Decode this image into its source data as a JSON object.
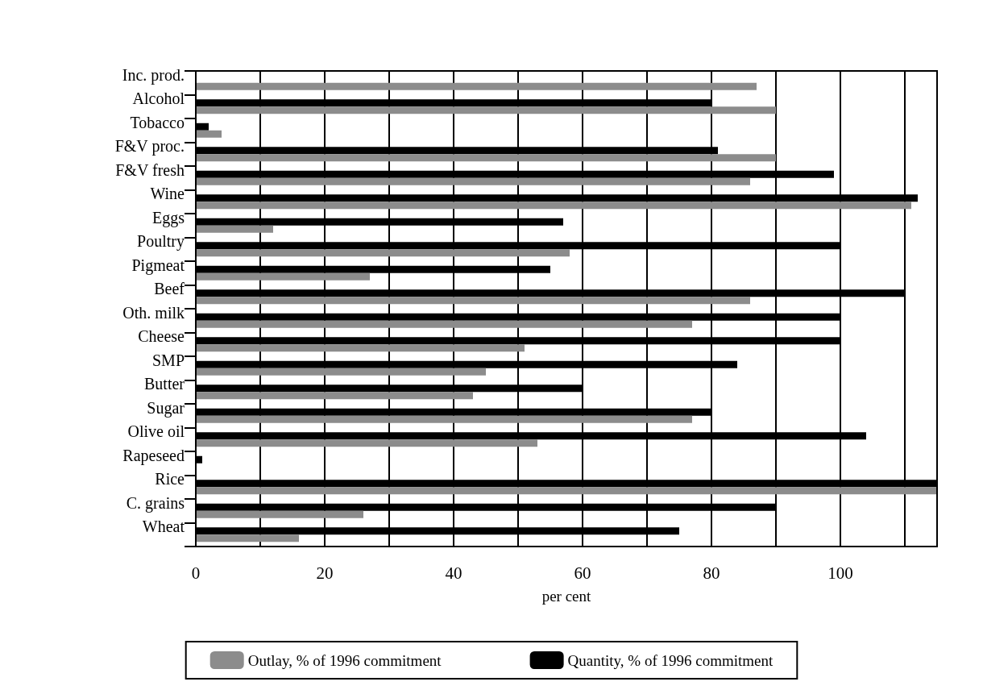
{
  "chart_data": {
    "type": "bar",
    "orientation": "horizontal",
    "xlabel": "per cent",
    "categories": [
      "Inc. prod.",
      "Alcohol",
      "Tobacco",
      "F&V proc.",
      "F&V fresh",
      "Wine",
      "Eggs",
      "Poultry",
      "Pigmeat",
      "Beef",
      "Oth. milk",
      "Cheese",
      "SMP",
      "Butter",
      "Sugar",
      "Olive oil",
      "Rapeseed",
      "Rice",
      "C. grains",
      "Wheat"
    ],
    "series": [
      {
        "name": "Outlay, % of 1996 commitment",
        "color": "#8c8c8c",
        "values": [
          87,
          90,
          4,
          90,
          86,
          111,
          12,
          58,
          27,
          86,
          77,
          51,
          45,
          43,
          77,
          53,
          null,
          115,
          26,
          16
        ]
      },
      {
        "name": "Quantity, % of 1996 commitment",
        "color": "#000000",
        "values": [
          null,
          80,
          2,
          81,
          99,
          112,
          57,
          100,
          55,
          110,
          100,
          100,
          84,
          60,
          80,
          104,
          1,
          115,
          90,
          75
        ]
      }
    ],
    "xlim": [
      0,
      115
    ],
    "xticks": [
      0,
      {
        "value": 10,
        "label": null
      },
      20,
      {
        "value": 30,
        "label": null
      },
      40,
      {
        "value": 50,
        "label": null
      },
      60,
      {
        "value": 70,
        "label": null
      },
      80,
      {
        "value": 90,
        "label": null
      },
      100,
      {
        "value": 110,
        "label": null
      }
    ],
    "grid": "x",
    "legend": "bottom"
  }
}
